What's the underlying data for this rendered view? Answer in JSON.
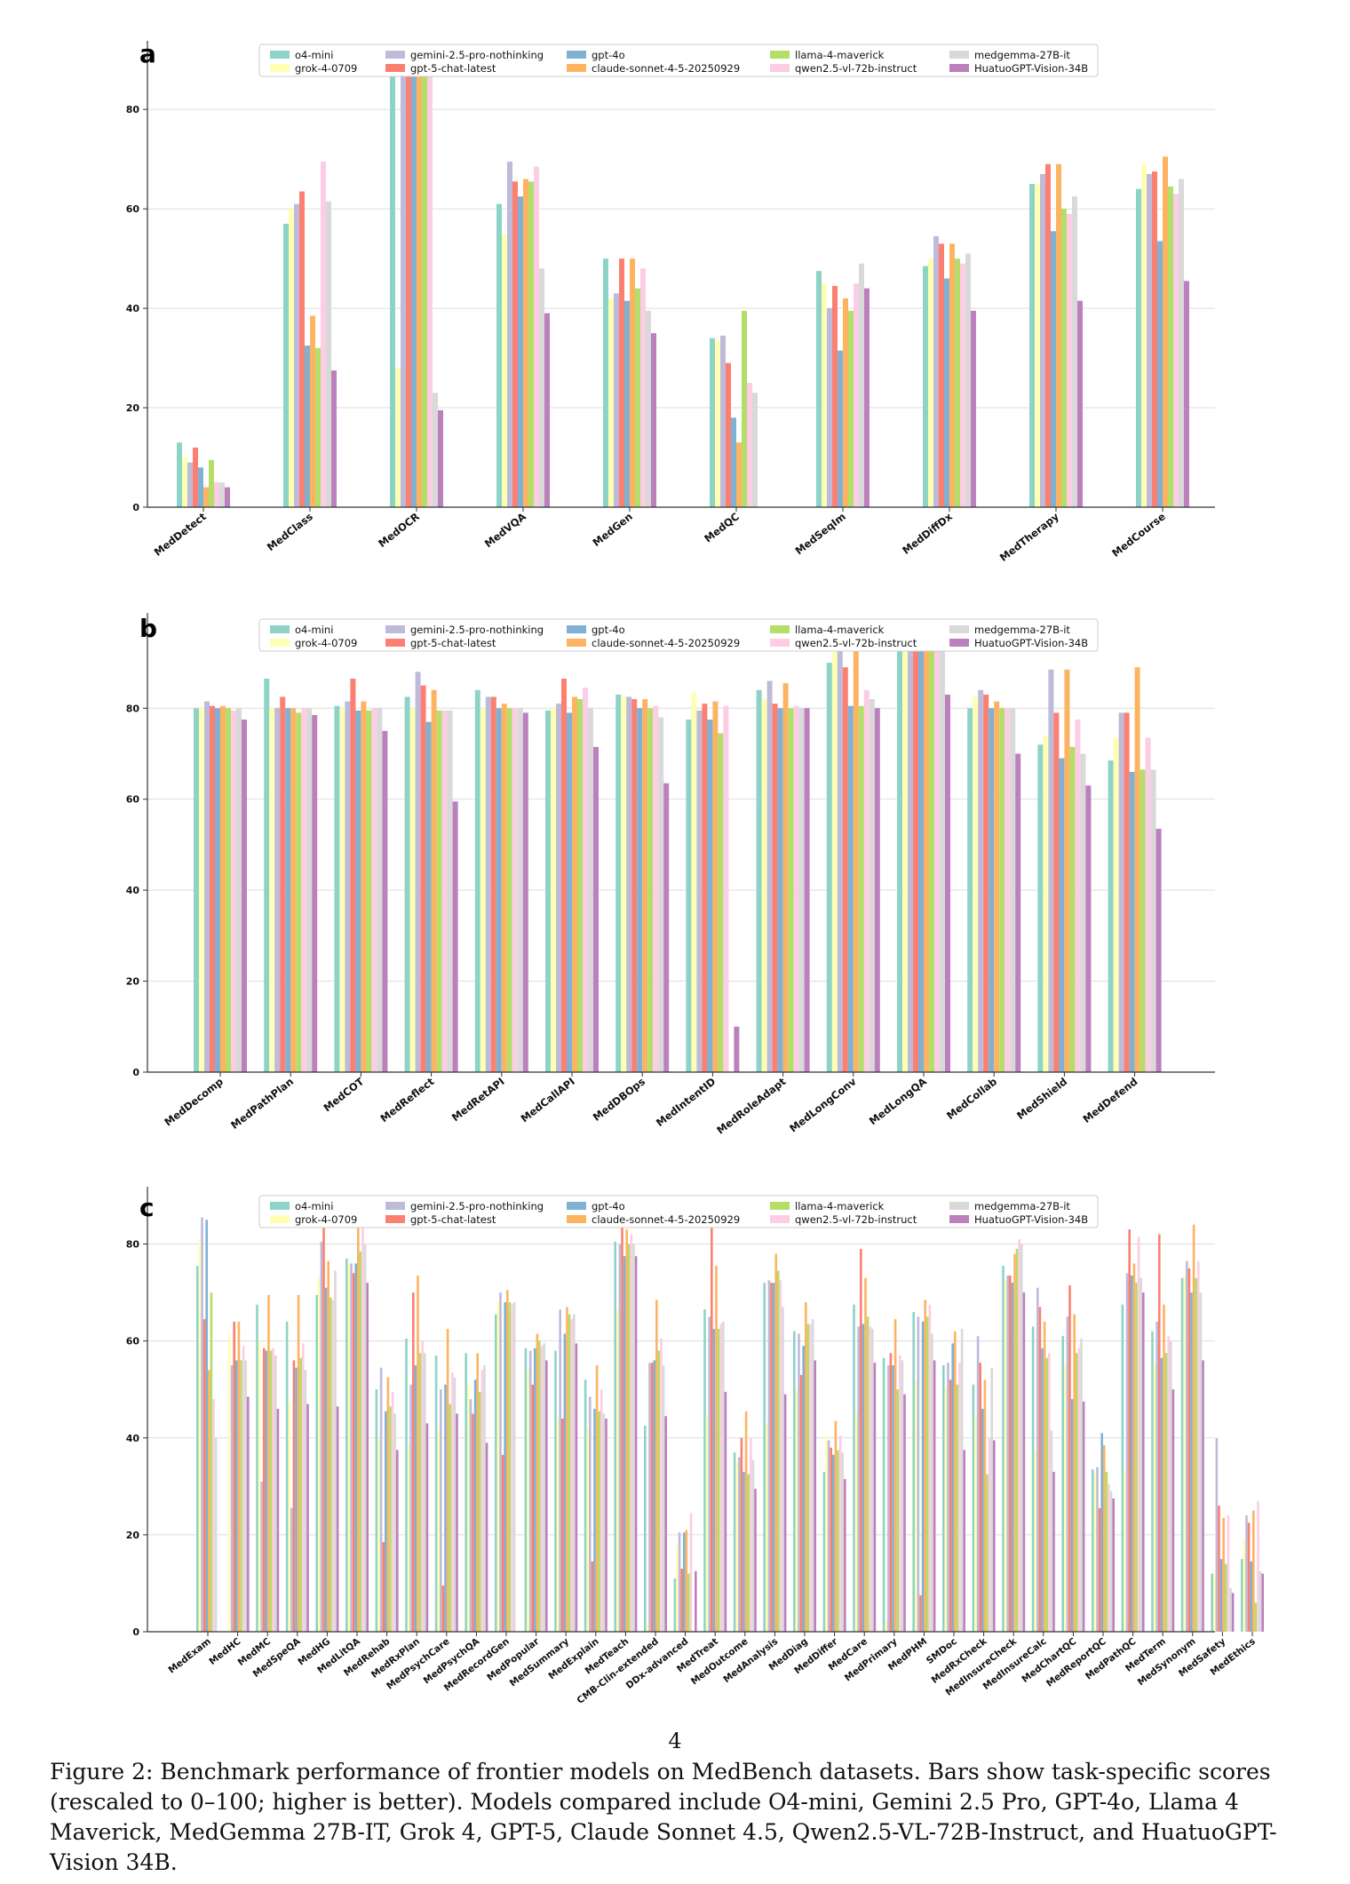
{
  "colors": [
    "#8dd3c7",
    "#ffffb3",
    "#bebada",
    "#fb8072",
    "#80b1d3",
    "#fdb462",
    "#b3de69",
    "#fccde5",
    "#d9d9d9",
    "#bc80bd"
  ],
  "caption": "Figure 2: Benchmark performance of frontier models on MedBench datasets. Bars show task-specific scores (rescaled to 0–100; higher is better). Models compared include O4-mini, Gemini 2.5 Pro, GPT-4o, Llama 4 Maverick, MedGemma 27B-IT, Grok 4, GPT-5, Claude Sonnet 4.5, Qwen2.5-VL-72B-Instruct, and HuatuoGPT-Vision 34B.",
  "page_number": "4",
  "chart_data": [
    {
      "type": "bar",
      "panel_label": "a",
      "legend_placement": "top",
      "grid": true,
      "ylim": [
        0,
        92
      ],
      "yticks": [
        0,
        20,
        40,
        60,
        80
      ],
      "series_names": [
        "o4-mini",
        "grok-4-0709",
        "gemini-2.5-pro-nothinking",
        "gpt-5-chat-latest",
        "gpt-4o",
        "claude-sonnet-4-5-20250929",
        "llama-4-maverick",
        "qwen2.5-vl-72b-instruct",
        "medgemma-27B-it",
        "HuatuoGPT-Vision-34B"
      ],
      "categories": [
        "MedDetect",
        "MedClass",
        "MedOCR",
        "MedVQA",
        "MedGen",
        "MedQC",
        "MedSeqIm",
        "MedDiffDx",
        "MedTherapy",
        "MedCourse"
      ],
      "values": [
        [
          13,
          10,
          9,
          12,
          8,
          4,
          9.5,
          5,
          5,
          4
        ],
        [
          57,
          60,
          61,
          63.5,
          32.5,
          38.5,
          32,
          69.5,
          61.5,
          27.5
        ],
        [
          89,
          28,
          90,
          95,
          93,
          87.5,
          93,
          95,
          23,
          19.5
        ],
        [
          61,
          55,
          69.5,
          65.5,
          62.5,
          66,
          65.5,
          68.5,
          48,
          39
        ],
        [
          50,
          42,
          43,
          50,
          41.5,
          50,
          44,
          48,
          39.5,
          35
        ],
        [
          34,
          33.5,
          34.5,
          29,
          18,
          13,
          39.5,
          25,
          23,
          0
        ],
        [
          47.5,
          45,
          40,
          44.5,
          31.5,
          42,
          39.5,
          45,
          49,
          44
        ],
        [
          48.5,
          50,
          54.5,
          53,
          46,
          53,
          50,
          49,
          51,
          39.5
        ],
        [
          65,
          65,
          67,
          69,
          55.5,
          69,
          60,
          59,
          62.5,
          41.5
        ],
        [
          64,
          69,
          67,
          67.5,
          53.5,
          70.5,
          64.5,
          63,
          66,
          45.5
        ]
      ]
    },
    {
      "type": "bar",
      "panel_label": "b",
      "legend_placement": "top",
      "grid": true,
      "ylim": [
        0,
        99
      ],
      "yticks": [
        0,
        20,
        40,
        60,
        80
      ],
      "series_names": [
        "o4-mini",
        "grok-4-0709",
        "gemini-2.5-pro-nothinking",
        "gpt-5-chat-latest",
        "gpt-4o",
        "claude-sonnet-4-5-20250929",
        "llama-4-maverick",
        "qwen2.5-vl-72b-instruct",
        "medgemma-27B-it",
        "HuatuoGPT-Vision-34B"
      ],
      "categories": [
        "MedDecomp",
        "MedPathPlan",
        "MedCOT",
        "MedReflect",
        "MedRetAPI",
        "MedCallAPI",
        "MedDBOps",
        "MedIntentID",
        "MedRoleAdapt",
        "MedLongConv",
        "MedLongQA",
        "MedCollab",
        "MedShield",
        "MedDefend"
      ],
      "values": [
        [
          80,
          80,
          81.5,
          80.5,
          80,
          80.5,
          80,
          79.5,
          80,
          77.5
        ],
        [
          86.5,
          80,
          80,
          82.5,
          80,
          80,
          79,
          80,
          80,
          78.5
        ],
        [
          80.5,
          80,
          81.5,
          86.5,
          79.5,
          81.5,
          79.5,
          80,
          80,
          75
        ],
        [
          82.5,
          80,
          88,
          85,
          77,
          84,
          79.5,
          79.5,
          79.5,
          59.5
        ],
        [
          84,
          80,
          82.5,
          82.5,
          80,
          81,
          80,
          80,
          80,
          79
        ],
        [
          79.5,
          80,
          81,
          86.5,
          79,
          82.5,
          82,
          84.5,
          80,
          71.5
        ],
        [
          83,
          82.5,
          82.5,
          82,
          80,
          82,
          80,
          80.5,
          78,
          63.5
        ],
        [
          77.5,
          83.5,
          79.5,
          81,
          77.5,
          81.5,
          74.5,
          80.5,
          0,
          10
        ],
        [
          84,
          82,
          86,
          81,
          80,
          85.5,
          80,
          80.5,
          80,
          80
        ],
        [
          90,
          96,
          96.5,
          89,
          80.5,
          98,
          80.5,
          84,
          82,
          80
        ],
        [
          96,
          97,
          98,
          98,
          98,
          98,
          98,
          98,
          98,
          83
        ],
        [
          80,
          82.5,
          84,
          83,
          80,
          81.5,
          80,
          80,
          80,
          70
        ],
        [
          72,
          74,
          88.5,
          79,
          69,
          88.5,
          71.5,
          77.5,
          70,
          63
        ],
        [
          68.5,
          73.5,
          79,
          79,
          66,
          89,
          66.5,
          73.5,
          66.5,
          53.5
        ]
      ]
    },
    {
      "type": "bar",
      "panel_label": "c",
      "legend_placement": "top",
      "grid": true,
      "ylim": [
        0,
        90
      ],
      "yticks": [
        0,
        20,
        40,
        60,
        80
      ],
      "series_names": [
        "o4-mini",
        "grok-4-0709",
        "gemini-2.5-pro-nothinking",
        "gpt-5-chat-latest",
        "gpt-4o",
        "claude-sonnet-4-5-20250929",
        "llama-4-maverick",
        "qwen2.5-vl-72b-instruct",
        "medgemma-27B-it",
        "HuatuoGPT-Vision-34B"
      ],
      "categories": [
        "MedExam",
        "MedHC",
        "MedMC",
        "MedSpeQA",
        "MedHG",
        "MedLitQA",
        "MedRehab",
        "MedRxPlan",
        "MedPsychCare",
        "MedPsychQA",
        "MedRecordGen",
        "MedPopular",
        "MedSummary",
        "MedExplain",
        "MedTeach",
        "CMB-Clin-extended",
        "DDx-advanced",
        "MedTreat",
        "MedOutcome",
        "MedAnalysis",
        "MedDiag",
        "MedDiffer",
        "MedCare",
        "MedPrimary",
        "MedPHM",
        "SMDoc",
        "MedRxCheck",
        "MedInsureCheck",
        "MedInsureCalc",
        "MedChartQC",
        "MedReportQC",
        "MedPathQC",
        "MedTerm",
        "MedSynonym",
        "MedSafety",
        "MedEthics"
      ],
      "values": [
        [
          75.5,
          81,
          85.5,
          64.5,
          85,
          54,
          70,
          48,
          40,
          0
        ],
        [
          0,
          61.5,
          55,
          64,
          56,
          64,
          56,
          59,
          56,
          48.5
        ],
        [
          67.5,
          60,
          31,
          58.5,
          58,
          69.5,
          58,
          58.5,
          57,
          46
        ],
        [
          64,
          47.5,
          25.5,
          56,
          54.5,
          69.5,
          56.5,
          59.5,
          54,
          47
        ],
        [
          69.5,
          73,
          80.5,
          89,
          71,
          76.5,
          69,
          68.5,
          74.5,
          46.5
        ],
        [
          77,
          76,
          76,
          74,
          76,
          84.5,
          78.5,
          86.5,
          80,
          72
        ],
        [
          50,
          40,
          54.5,
          18.5,
          45.5,
          52.5,
          46.5,
          49.5,
          45,
          37.5
        ],
        [
          60.5,
          38.5,
          51,
          70,
          55,
          73.5,
          57.5,
          60,
          57.5,
          43
        ],
        [
          57,
          41.5,
          50,
          9.5,
          51,
          62.5,
          47,
          53.5,
          52.5,
          45
        ],
        [
          57.5,
          51,
          48,
          45,
          52,
          57.5,
          49.5,
          54,
          55,
          39
        ],
        [
          65.5,
          68,
          70,
          36.5,
          68,
          70.5,
          68,
          67.5,
          68,
          0
        ],
        [
          58.5,
          54,
          58,
          51,
          58.5,
          61.5,
          60,
          59,
          59.5,
          56
        ],
        [
          58,
          44,
          66.5,
          44,
          61.5,
          67,
          65.5,
          64.5,
          65.5,
          59.5
        ],
        [
          52,
          42,
          48.5,
          14.5,
          46,
          55,
          45.5,
          50,
          45,
          44
        ],
        [
          80.5,
          66.5,
          80,
          83.5,
          77.5,
          83,
          80,
          82,
          80,
          77.5
        ],
        [
          42.5,
          1.5,
          55.5,
          55.5,
          56,
          68.5,
          58,
          60.5,
          55,
          44.5
        ],
        [
          11,
          18,
          20.5,
          13,
          20.5,
          21,
          12,
          24.5,
          0,
          12.5
        ],
        [
          66.5,
          44.5,
          65,
          87.5,
          62.5,
          75.5,
          62.5,
          63.5,
          64,
          49.5
        ],
        [
          37,
          35,
          36,
          40,
          33,
          45.5,
          32.5,
          40,
          35.5,
          29.5
        ],
        [
          72,
          43,
          72.5,
          72,
          72,
          78,
          74.5,
          72.5,
          67,
          49
        ],
        [
          62,
          50,
          61.5,
          53,
          59,
          68,
          63.5,
          63.5,
          64.5,
          56
        ],
        [
          33,
          40.5,
          39.5,
          38,
          36.5,
          43.5,
          37.5,
          40.5,
          37,
          31.5
        ],
        [
          67.5,
          45,
          63,
          79,
          63.5,
          73,
          65,
          63,
          62.5,
          55.5
        ],
        [
          56.5,
          2.5,
          55,
          57.5,
          55,
          64.5,
          50,
          57,
          56,
          49
        ],
        [
          66,
          52,
          65,
          7.5,
          64,
          68.5,
          65,
          67.5,
          61.5,
          56
        ],
        [
          55,
          50.5,
          55.5,
          52,
          59.5,
          62,
          51,
          55.5,
          62.5,
          37.5
        ],
        [
          51,
          44.5,
          61,
          55.5,
          46,
          52,
          32.5,
          40,
          54.5,
          39.5
        ],
        [
          75.5,
          72.5,
          73.5,
          73.5,
          72,
          78,
          79,
          81,
          80,
          70
        ],
        [
          63,
          37.5,
          71,
          67,
          58.5,
          64,
          56.5,
          57.5,
          41.5,
          33
        ],
        [
          61,
          55,
          65,
          71.5,
          48,
          65.5,
          57.5,
          58.5,
          60.5,
          47.5
        ],
        [
          33.5,
          32.5,
          34,
          25.5,
          41,
          38.5,
          33,
          30.5,
          29,
          27.5
        ],
        [
          67.5,
          33.5,
          74,
          83,
          73.5,
          76,
          72,
          81.5,
          73,
          70
        ],
        [
          62,
          55.5,
          64,
          82,
          56.5,
          67.5,
          57.5,
          61,
          60,
          50
        ],
        [
          73,
          73.5,
          76.5,
          75,
          70,
          84,
          73,
          76.5,
          70,
          56
        ],
        [
          12,
          12,
          40,
          26,
          15,
          23.5,
          14,
          24,
          9,
          8
        ],
        [
          15,
          19,
          24,
          22.5,
          14.5,
          25,
          6,
          27,
          12.5,
          12
        ]
      ]
    }
  ]
}
